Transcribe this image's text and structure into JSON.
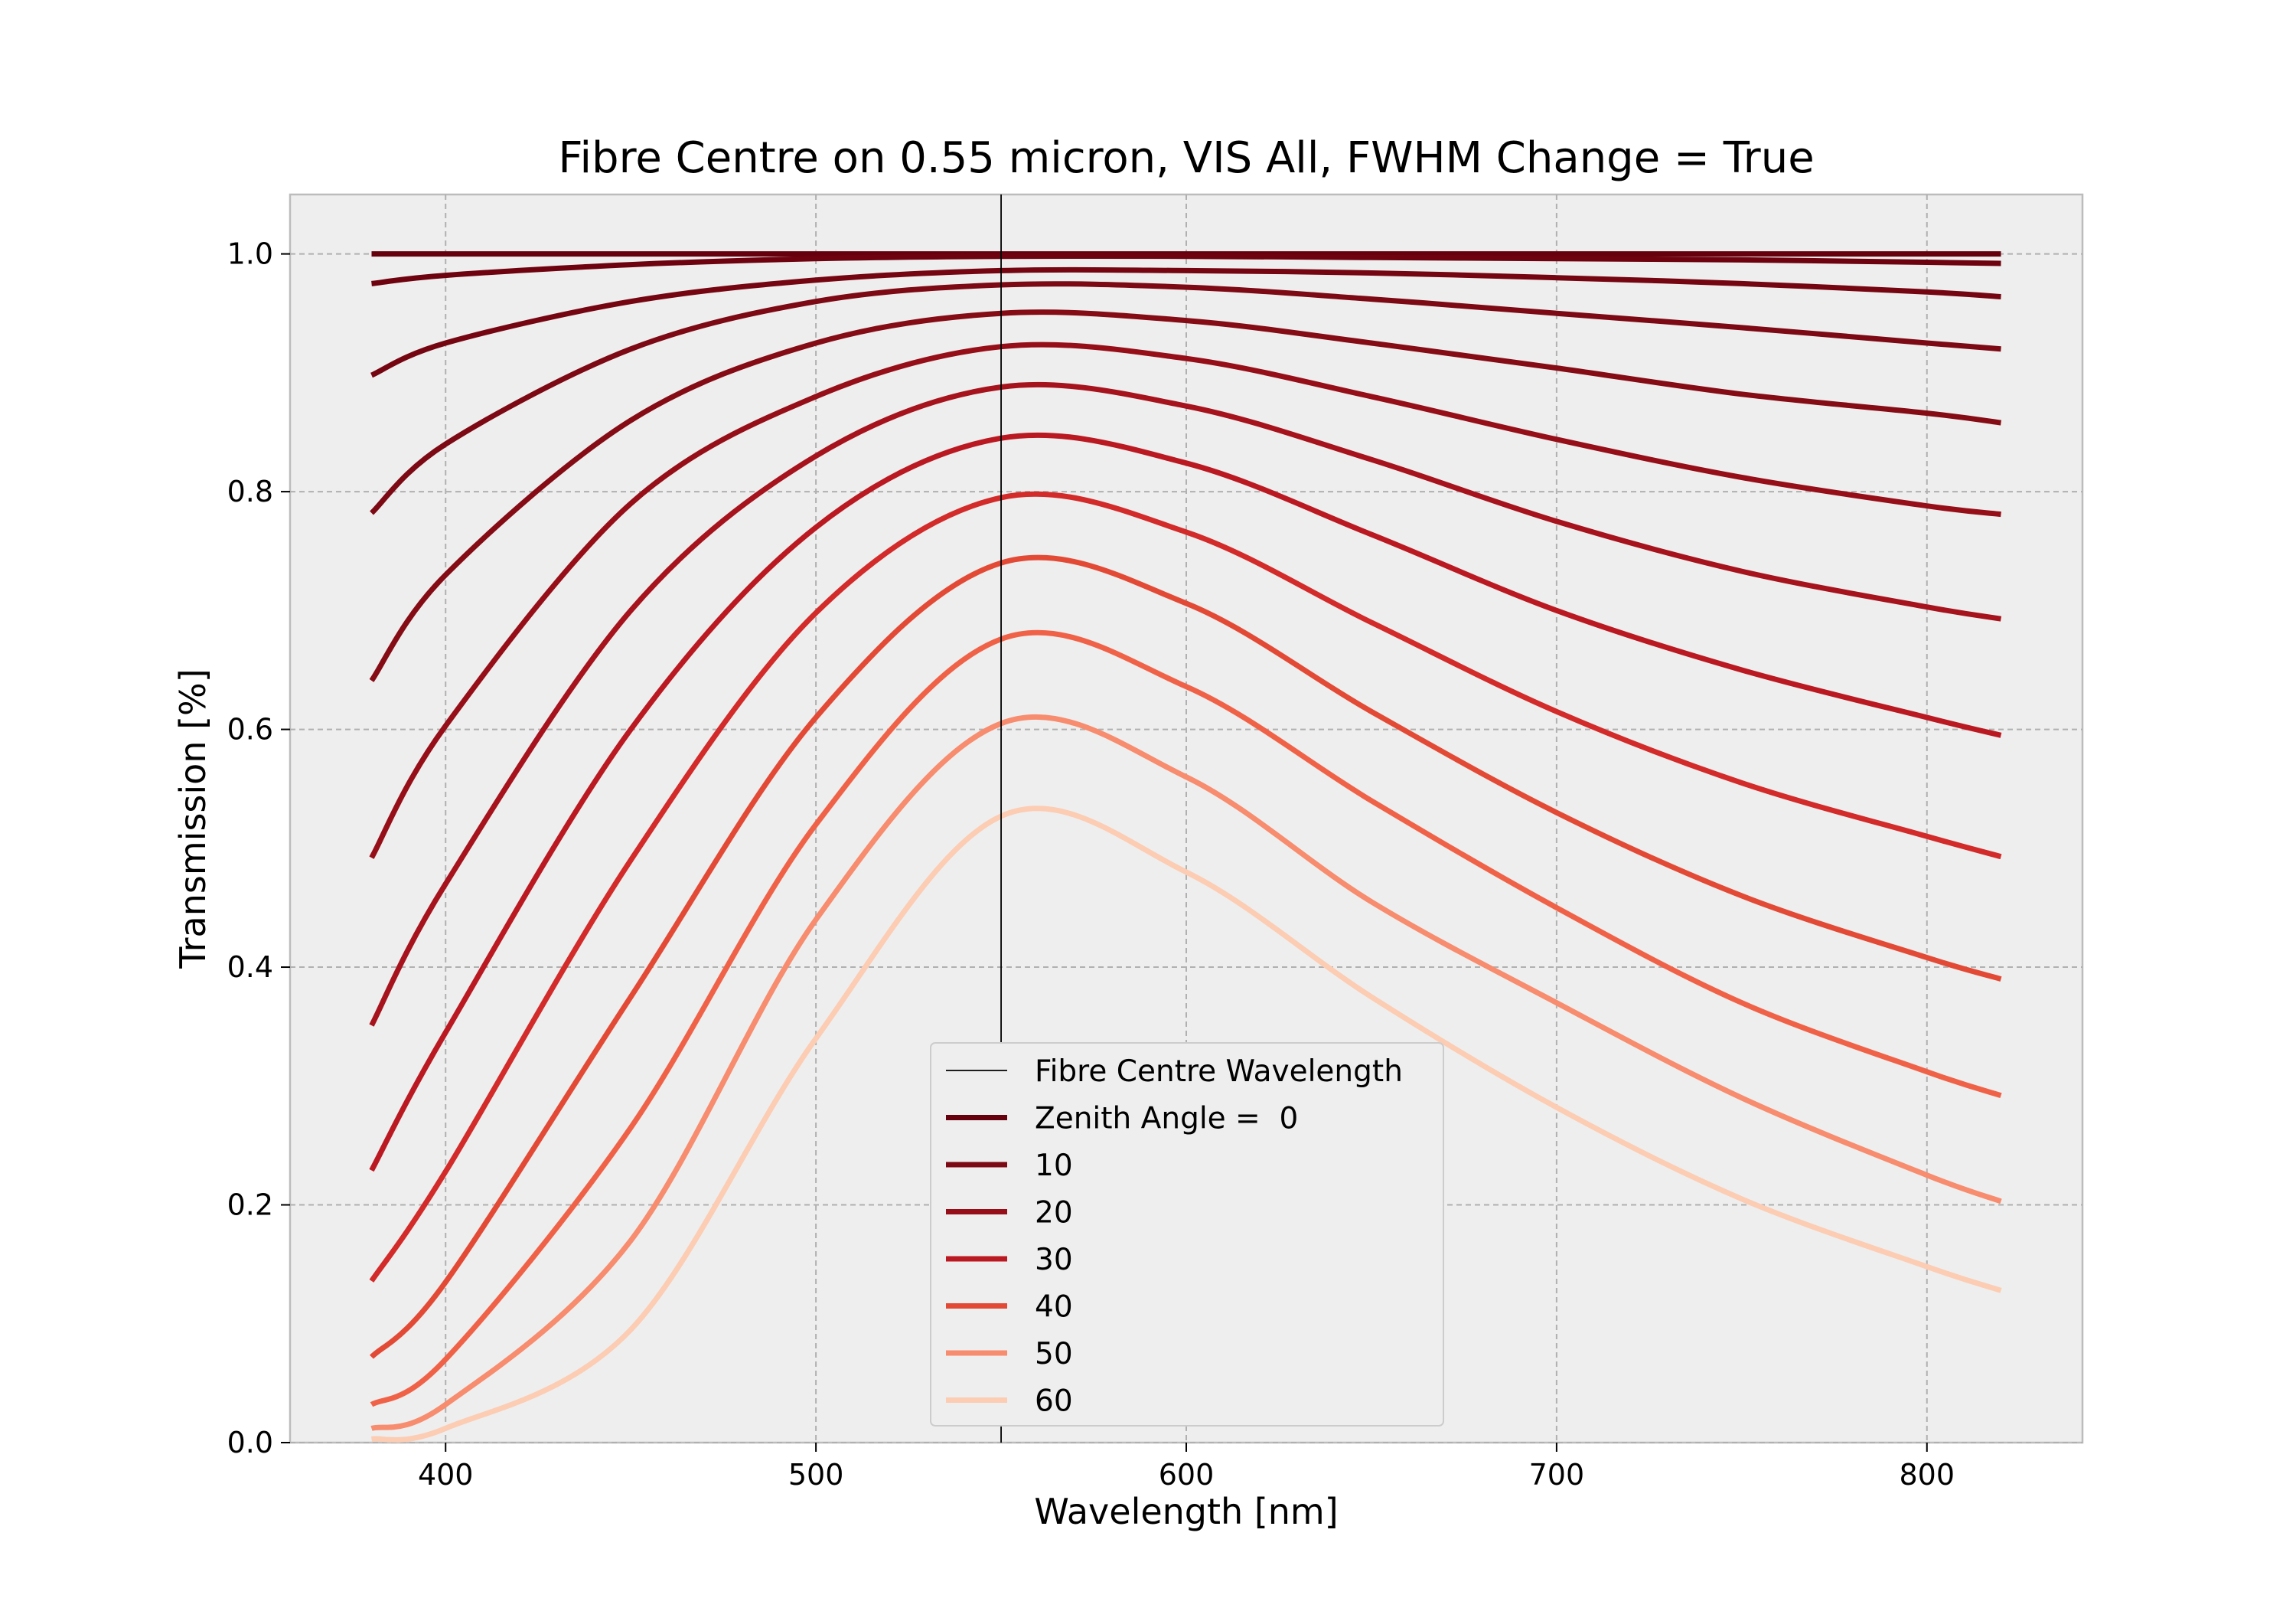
{
  "chart_data": {
    "type": "line",
    "title": "Fibre Centre on 0.55 micron, VIS All, FWHM Change = True",
    "xlabel": "Wavelength [nm]",
    "ylabel": "Transmission [%]",
    "xlim": [
      358,
      842
    ],
    "ylim": [
      0.0,
      1.05
    ],
    "xticks": [
      400,
      500,
      600,
      700,
      800
    ],
    "yticks": [
      0.0,
      0.2,
      0.4,
      0.6,
      0.8,
      1.0
    ],
    "xtick_labels": [
      "400",
      "500",
      "600",
      "700",
      "800"
    ],
    "ytick_labels": [
      "0.0",
      "0.2",
      "0.4",
      "0.6",
      "0.8",
      "1.0"
    ],
    "grid": true,
    "legend_position": "bottom-center",
    "background": "#eeeeee",
    "reference_line": {
      "name": "Fibre Centre Wavelength",
      "x": 550,
      "color": "#000000"
    },
    "x": [
      380,
      400,
      450,
      500,
      550,
      600,
      650,
      700,
      750,
      800,
      820
    ],
    "series": [
      {
        "name": "Zenith Angle =  0",
        "color": "#67000d",
        "values": [
          1.0,
          1.0,
          1.0,
          1.0,
          1.0,
          1.0,
          1.0,
          1.0,
          1.0,
          1.0,
          1.0
        ]
      },
      {
        "color": "#6e030f",
        "values": [
          0.975,
          0.982,
          0.991,
          0.996,
          0.998,
          0.998,
          0.997,
          0.996,
          0.995,
          0.993,
          0.992
        ]
      },
      {
        "color": "#750611",
        "values": [
          0.898,
          0.925,
          0.96,
          0.978,
          0.986,
          0.986,
          0.984,
          0.98,
          0.975,
          0.968,
          0.964
        ]
      },
      {
        "name": "10",
        "color": "#7c0913",
        "values": [
          0.782,
          0.84,
          0.92,
          0.96,
          0.974,
          0.972,
          0.962,
          0.95,
          0.938,
          0.925,
          0.92
        ]
      },
      {
        "color": "#850c14",
        "values": [
          0.641,
          0.73,
          0.86,
          0.925,
          0.95,
          0.944,
          0.925,
          0.904,
          0.882,
          0.866,
          0.858
        ]
      },
      {
        "name": "20",
        "color": "#960f18",
        "values": [
          0.492,
          0.603,
          0.79,
          0.88,
          0.922,
          0.912,
          0.88,
          0.844,
          0.812,
          0.788,
          0.781
        ]
      },
      {
        "color": "#a6131c",
        "values": [
          0.351,
          0.47,
          0.7,
          0.83,
          0.888,
          0.872,
          0.827,
          0.775,
          0.733,
          0.703,
          0.693
        ]
      },
      {
        "name": "30",
        "color": "#bb1921",
        "values": [
          0.229,
          0.345,
          0.6,
          0.77,
          0.845,
          0.824,
          0.764,
          0.7,
          0.65,
          0.61,
          0.595
        ]
      },
      {
        "color": "#d32a2a",
        "values": [
          0.136,
          0.228,
          0.49,
          0.698,
          0.795,
          0.766,
          0.69,
          0.615,
          0.555,
          0.51,
          0.493
        ]
      },
      {
        "name": "40",
        "color": "#e34a36",
        "values": [
          0.072,
          0.135,
          0.375,
          0.61,
          0.74,
          0.706,
          0.615,
          0.53,
          0.46,
          0.408,
          0.39
        ]
      },
      {
        "color": "#f06248",
        "values": [
          0.032,
          0.07,
          0.265,
          0.52,
          0.676,
          0.636,
          0.54,
          0.45,
          0.37,
          0.312,
          0.292
        ]
      },
      {
        "name": "50",
        "color": "#f78c6e",
        "values": [
          0.012,
          0.032,
          0.17,
          0.44,
          0.605,
          0.56,
          0.455,
          0.37,
          0.29,
          0.225,
          0.203
        ]
      },
      {
        "name": "60",
        "color": "#fcccb3",
        "values": [
          0.003,
          0.012,
          0.095,
          0.34,
          0.527,
          0.48,
          0.375,
          0.282,
          0.205,
          0.148,
          0.128
        ]
      }
    ]
  }
}
